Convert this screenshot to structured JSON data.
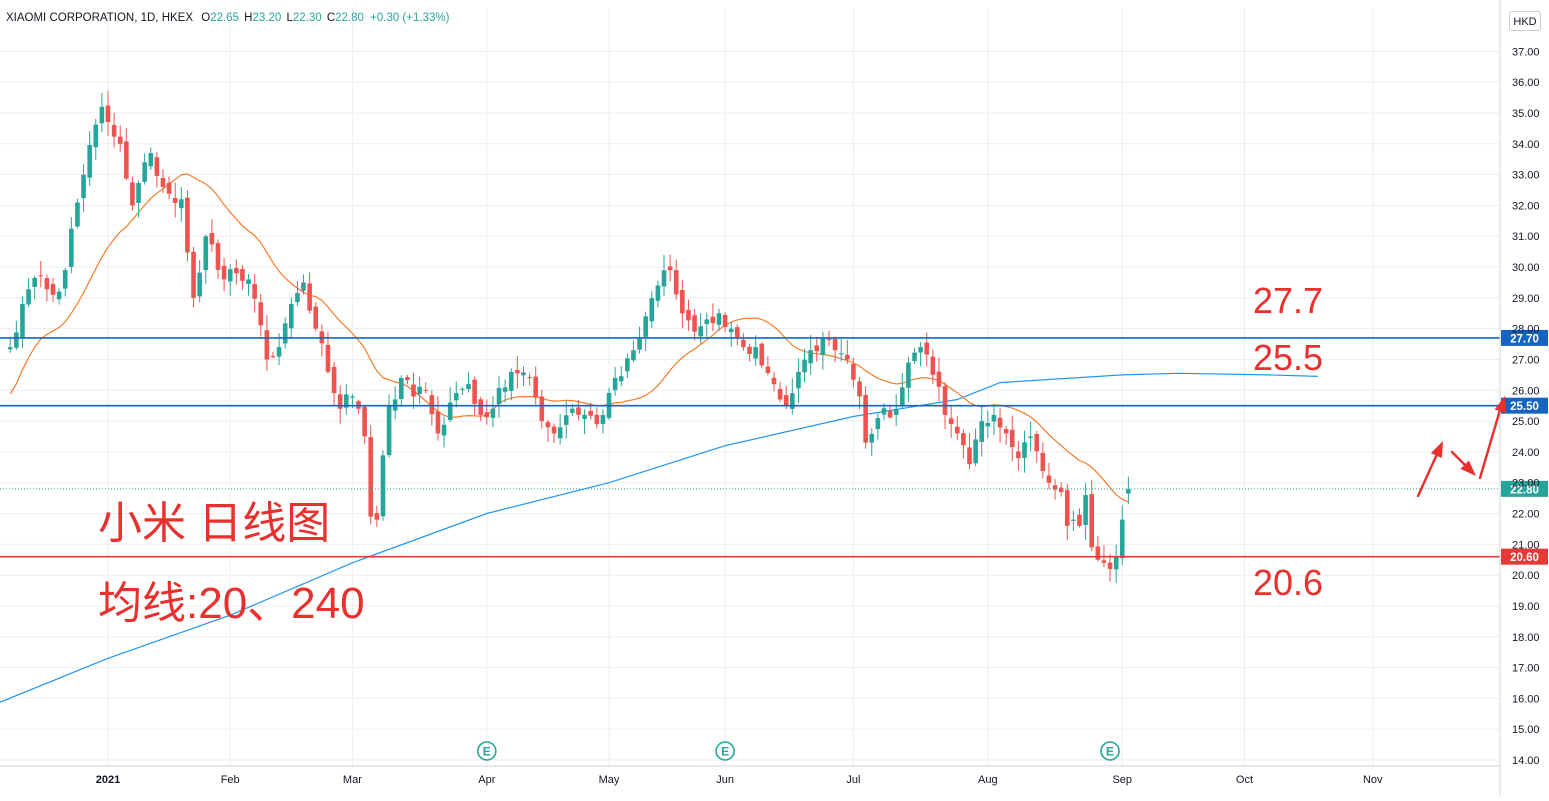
{
  "header": {
    "symbol": "XIAOMI CORPORATION, 1D, HKEX",
    "open_label": "O",
    "open": "22.65",
    "high_label": "H",
    "high": "23.20",
    "low_label": "L",
    "low": "22.30",
    "close_label": "C",
    "close": "22.80",
    "change": "+0.30 (+1.33%)"
  },
  "currency": "HKD",
  "colors": {
    "up": "#26a69a",
    "down": "#ef5350",
    "ma20": "#f57c2a",
    "ma240": "#2196f3",
    "level_blue": "#1565c0",
    "level_red": "#e53935",
    "annotation": "#e8302e",
    "grid": "#eceef2",
    "axis_text": "#131722"
  },
  "annotations": {
    "title": "小米 日线图",
    "subtitle": "均线:20、240",
    "level_high": "27.7",
    "level_mid": "25.5",
    "level_low": "20.6"
  },
  "event_marker": "E",
  "chart_data": {
    "type": "candlestick",
    "title": "XIAOMI CORPORATION",
    "interval": "1D",
    "exchange": "HKEX",
    "ylim": [
      13.9,
      37.6
    ],
    "y_ticks": [
      "37.00",
      "36.00",
      "35.00",
      "34.00",
      "33.00",
      "32.00",
      "31.00",
      "30.00",
      "29.00",
      "28.00",
      "27.00",
      "26.00",
      "25.00",
      "24.00",
      "23.00",
      "22.00",
      "21.00",
      "20.00",
      "19.00",
      "18.00",
      "17.00",
      "16.00",
      "15.00",
      "14.00"
    ],
    "x_ticks": [
      "2021",
      "Feb",
      "Mar",
      "Apr",
      "May",
      "Jun",
      "Jul",
      "Aug",
      "Sep",
      "Oct",
      "Nov"
    ],
    "x_tick_index": [
      0,
      20,
      40,
      62,
      82,
      101,
      122,
      144,
      166,
      186,
      207
    ],
    "horizontal_levels": [
      {
        "price": 27.7,
        "label": "27.70",
        "color": "#1565c0"
      },
      {
        "price": 25.5,
        "label": "25.50",
        "color": "#1565c0"
      },
      {
        "price": 20.6,
        "label": "20.60",
        "color": "#e53935"
      }
    ],
    "last_price": {
      "price": 22.8,
      "label": "22.80"
    },
    "moving_averages": [
      {
        "name": "MA20",
        "period": 20,
        "color": "#f57c2a"
      },
      {
        "name": "MA240",
        "period": 240,
        "color": "#2196f3"
      }
    ],
    "event_index": [
      62,
      101,
      164
    ],
    "key_points": [
      [
        -16,
        27.4
      ],
      [
        -14,
        28.8
      ],
      [
        -11,
        29.7
      ],
      [
        -8,
        29.2
      ],
      [
        -4,
        33.0
      ],
      [
        -1,
        35.2
      ],
      [
        2,
        34.0
      ],
      [
        4,
        32.0
      ],
      [
        7,
        33.7
      ],
      [
        9,
        32.6
      ],
      [
        12,
        32.2
      ],
      [
        14,
        29.0
      ],
      [
        16,
        31.0
      ],
      [
        19,
        29.6
      ],
      [
        21,
        29.8
      ],
      [
        23,
        29.6
      ],
      [
        26,
        27.0
      ],
      [
        28,
        27.4
      ],
      [
        30,
        28.8
      ],
      [
        32,
        29.5
      ],
      [
        34,
        28.0
      ],
      [
        36,
        26.6
      ],
      [
        38,
        25.4
      ],
      [
        40,
        25.8
      ],
      [
        42,
        24.5
      ],
      [
        43,
        21.9
      ],
      [
        44,
        21.8
      ],
      [
        46,
        25.5
      ],
      [
        48,
        26.4
      ],
      [
        50,
        25.8
      ],
      [
        52,
        26.0
      ],
      [
        54,
        24.6
      ],
      [
        56,
        25.6
      ],
      [
        59,
        26.2
      ],
      [
        61,
        25.2
      ],
      [
        63,
        25.4
      ],
      [
        66,
        26.6
      ],
      [
        69,
        26.4
      ],
      [
        71,
        25.0
      ],
      [
        73,
        24.6
      ],
      [
        76,
        25.4
      ],
      [
        78,
        25.2
      ],
      [
        80,
        24.9
      ],
      [
        83,
        26.4
      ],
      [
        86,
        27.3
      ],
      [
        88,
        28.4
      ],
      [
        90,
        29.4
      ],
      [
        92,
        29.9
      ],
      [
        94,
        28.5
      ],
      [
        96,
        27.9
      ],
      [
        98,
        28.3
      ],
      [
        100,
        28.5
      ],
      [
        102,
        28.0
      ],
      [
        104,
        27.4
      ],
      [
        106,
        27.4
      ],
      [
        109,
        26.2
      ],
      [
        111,
        25.5
      ],
      [
        113,
        26.6
      ],
      [
        115,
        27.3
      ],
      [
        117,
        27.7
      ],
      [
        119,
        27.3
      ],
      [
        121,
        27.0
      ],
      [
        123,
        25.8
      ],
      [
        124,
        24.3
      ],
      [
        126,
        25.1
      ],
      [
        129,
        25.4
      ],
      [
        131,
        26.9
      ],
      [
        133,
        27.4
      ],
      [
        135,
        26.5
      ],
      [
        137,
        25.2
      ],
      [
        139,
        24.6
      ],
      [
        141,
        23.6
      ],
      [
        143,
        25.0
      ],
      [
        145,
        25.2
      ],
      [
        147,
        24.6
      ],
      [
        149,
        23.8
      ],
      [
        151,
        24.5
      ],
      [
        154,
        23.0
      ],
      [
        156,
        22.7
      ],
      [
        157,
        21.6
      ],
      [
        158,
        21.8
      ],
      [
        159,
        21.6
      ],
      [
        160,
        22.6
      ],
      [
        161,
        20.9
      ],
      [
        162,
        20.5
      ],
      [
        163,
        20.4
      ],
      [
        164,
        20.2
      ],
      [
        165,
        20.6
      ],
      [
        166,
        21.0
      ],
      [
        167,
        21.6
      ]
    ]
  }
}
